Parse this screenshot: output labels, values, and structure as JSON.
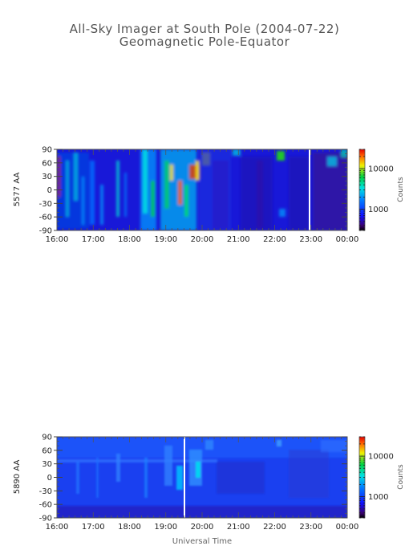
{
  "page": {
    "title": "All-Sky Imager at South Pole (2004-07-22)",
    "subtitle": "Geomagnetic Pole-Equator",
    "xlabel": "Universal Time"
  },
  "chart_data": [
    {
      "type": "heatmap",
      "ylabel": "5577 AA",
      "x_ticks": [
        "16:00",
        "17:00",
        "18:00",
        "19:00",
        "20:00",
        "21:00",
        "22:00",
        "23:00",
        "00:00"
      ],
      "x_range_hours": [
        16,
        24
      ],
      "y_ticks": [
        90,
        60,
        30,
        0,
        -30,
        -60,
        -90
      ],
      "y_range": [
        -90,
        90
      ],
      "colorbar": {
        "label": "Counts",
        "ticks": [
          "10000",
          "1000"
        ],
        "scale": "log"
      },
      "data_gap_time": "23:00"
    },
    {
      "type": "heatmap",
      "ylabel": "5890 AA",
      "x_ticks": [
        "16:00",
        "17:00",
        "18:00",
        "19:00",
        "20:00",
        "21:00",
        "22:00",
        "23:00",
        "00:00"
      ],
      "x_range_hours": [
        16,
        24
      ],
      "y_ticks": [
        90,
        60,
        30,
        0,
        -30,
        -60,
        -90
      ],
      "y_range": [
        -90,
        90
      ],
      "colorbar": {
        "label": "Counts",
        "ticks": [
          "10000",
          "1000"
        ],
        "scale": "log"
      },
      "data_gap_time": "19:30"
    }
  ]
}
